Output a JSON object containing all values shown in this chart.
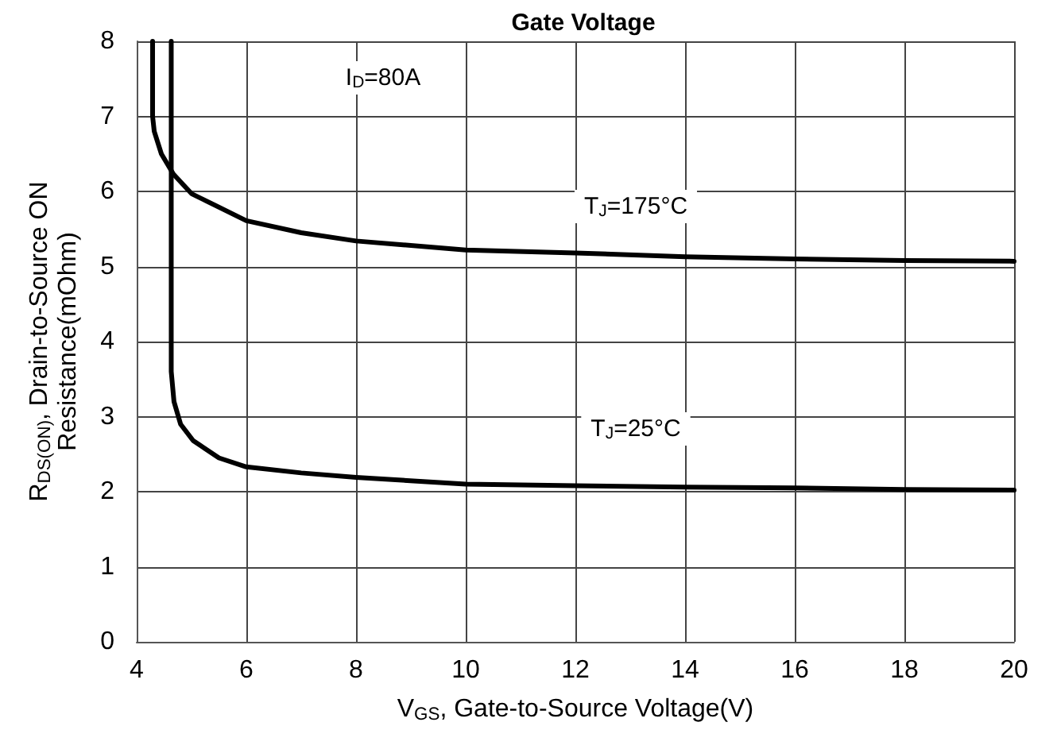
{
  "chart_data": {
    "type": "line",
    "title": "Gate Voltage",
    "xlabel": "V$_{GS}$, Gate-to-Source Voltage(V)",
    "ylabel": "R$_{DS(ON)}$, Drain-to-Source ON\nResistance(mOhm)",
    "xlim": [
      4,
      20
    ],
    "xticks": [
      4,
      6,
      8,
      10,
      12,
      14,
      16,
      18,
      20
    ],
    "ylim": [
      0,
      8
    ],
    "yticks": [
      0,
      1,
      2,
      3,
      4,
      5,
      6,
      7,
      8
    ],
    "grid": true,
    "series": [
      {
        "color": "#000000",
        "x": [
          4.29,
          4.29,
          4.32,
          4.45,
          4.67,
          5,
          6,
          7,
          8,
          10,
          12,
          14,
          16,
          18,
          20
        ],
        "values": [
          8,
          7.0,
          6.8,
          6.5,
          6.23,
          5.97,
          5.61,
          5.45,
          5.34,
          5.22,
          5.18,
          5.13,
          5.1,
          5.08,
          5.07
        ]
      },
      {
        "color": "#000000",
        "x": [
          4.63,
          4.63,
          4.68,
          4.8,
          5.03,
          5.5,
          6,
          7,
          8,
          10,
          12,
          14,
          16,
          18,
          20
        ],
        "values": [
          8,
          3.6,
          3.2,
          2.9,
          2.68,
          2.45,
          2.33,
          2.25,
          2.19,
          2.1,
          2.08,
          2.06,
          2.05,
          2.03,
          2.02
        ]
      }
    ],
    "annotations": [
      "I$_{D}$=80A",
      "T$_{J}$=175°C",
      "T$_{J}$=25°C"
    ]
  }
}
